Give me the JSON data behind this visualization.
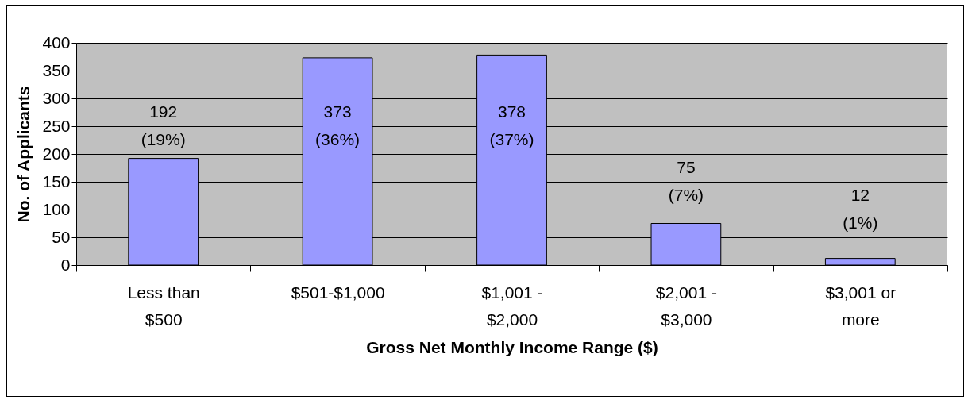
{
  "chart_data": {
    "type": "bar",
    "xlabel": "Gross Net Monthly Income Range ($)",
    "ylabel": "No. of Applicants",
    "categories": [
      "Less than $500",
      "$501-$1,000",
      "$1,001 - $2,000",
      "$2,001 - $3,000",
      "$3,001 or more"
    ],
    "values": [
      192,
      373,
      378,
      75,
      12
    ],
    "value_labels": [
      "192 (19%)",
      "373 (36%)",
      "378 (37%)",
      "75 (7%)",
      "12 (1%)"
    ],
    "color": "#9999ff",
    "ylim": [
      0,
      400
    ],
    "yticks": [
      0,
      50,
      100,
      150,
      200,
      250,
      300,
      350,
      400
    ],
    "grid": "y",
    "legend": false
  }
}
